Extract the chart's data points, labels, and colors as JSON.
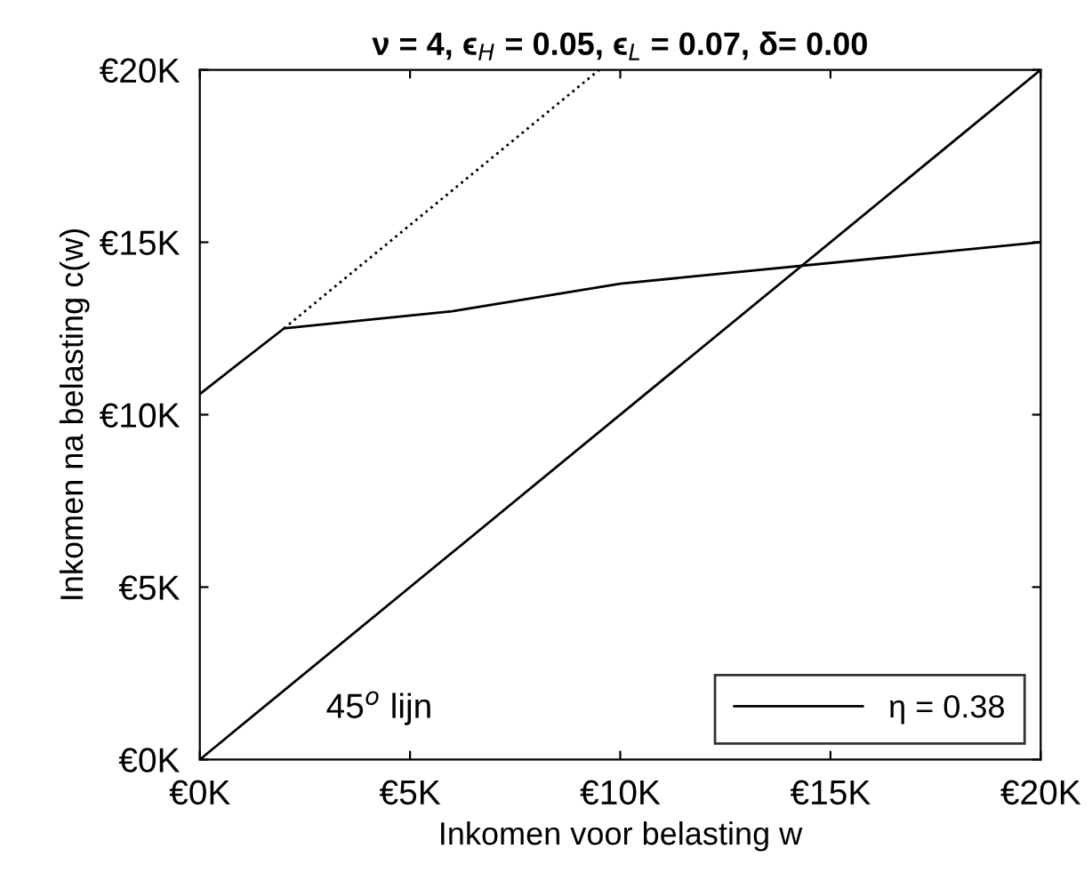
{
  "chart_data": {
    "type": "line",
    "title": "ν = 4, ϵ$_{H}$ = 0.05, ϵ$_{L}$ = 0.07, δ= 0.00",
    "xlabel": "Inkomen voor belasting w",
    "ylabel": "Inkomen na belasting c(w)",
    "series": [
      {
        "name": "η = 0.38",
        "color": "#000000",
        "line_style": "solid",
        "x": [
          0,
          2,
          6,
          10,
          20
        ],
        "values": [
          10.6,
          12.5,
          13.0,
          13.8,
          15.0
        ]
      },
      {
        "color": "#000000",
        "line_style": "solid",
        "x": [
          0,
          20
        ],
        "values": [
          0,
          20
        ]
      },
      {
        "color": "#000000",
        "line_style": "dotted",
        "x": [
          2,
          9.5
        ],
        "values": [
          12.5,
          20
        ]
      }
    ],
    "annotations": [
      "45$^{o}$ lijn"
    ],
    "xlim": [
      0,
      20
    ],
    "ylim": [
      0,
      20
    ],
    "xticks": [
      {
        "value": 0,
        "label": "€0K"
      },
      {
        "value": 5,
        "label": "€5K"
      },
      {
        "value": 10,
        "label": "€10K"
      },
      {
        "value": 15,
        "label": "€15K"
      },
      {
        "value": 20,
        "label": "€20K"
      }
    ],
    "yticks": [
      {
        "value": 0,
        "label": "€0K"
      },
      {
        "value": 5,
        "label": "€5K"
      },
      {
        "value": 10,
        "label": "€10K"
      },
      {
        "value": 15,
        "label": "€15K"
      },
      {
        "value": 20,
        "label": "€20K"
      }
    ],
    "grid": false,
    "legend": "bottom right",
    "marker": "none"
  }
}
